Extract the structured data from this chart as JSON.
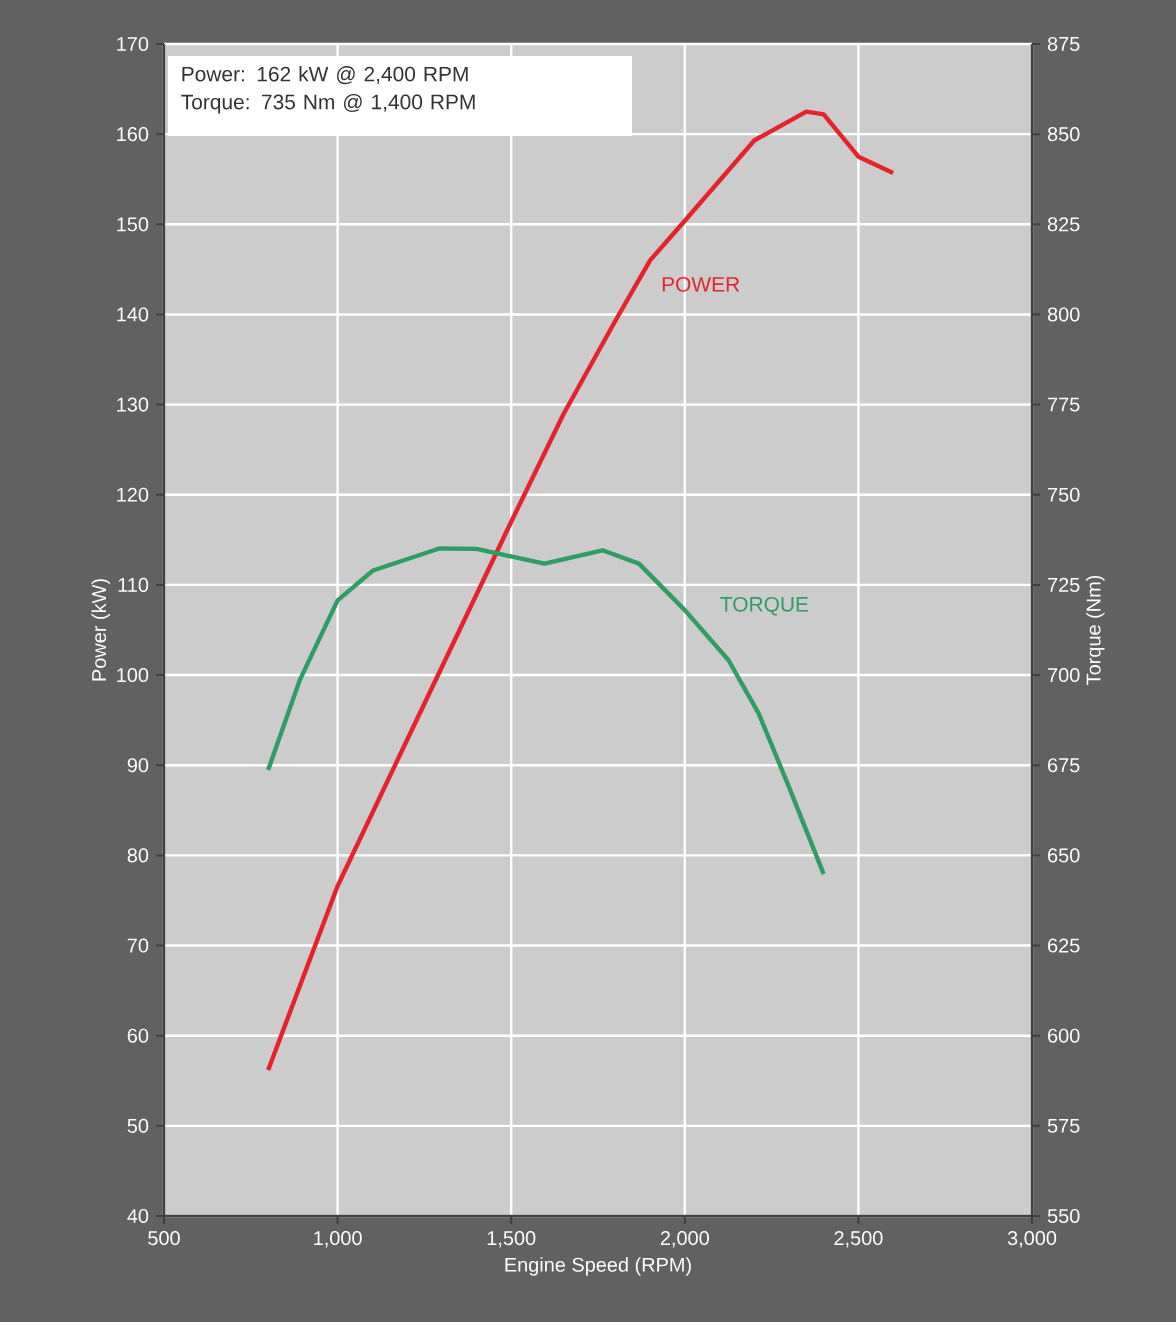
{
  "chart_data": {
    "type": "line",
    "xlabel": "Engine Speed (RPM)",
    "ylabel": "Power (kW)",
    "y2label": "Torque (Nm)",
    "annotations": [
      "Power: 162 kW @ 2,400 RPM",
      "Torque: 735 Nm @ 1,400 RPM"
    ],
    "xlim": [
      500,
      3000
    ],
    "xticks": [
      {
        "value": 500,
        "label": "500"
      },
      {
        "value": 1000,
        "label": "1,000"
      },
      {
        "value": 1500,
        "label": "1,500"
      },
      {
        "value": 2000,
        "label": "2,000"
      },
      {
        "value": 2500,
        "label": "2,500"
      },
      {
        "value": 3000,
        "label": "3,000"
      }
    ],
    "ylim": [
      40,
      170
    ],
    "yticks": [
      40,
      50,
      60,
      70,
      80,
      90,
      100,
      110,
      120,
      130,
      140,
      150,
      160,
      170
    ],
    "y2lim": [
      550,
      875
    ],
    "y2ticks": [
      550,
      575,
      600,
      625,
      650,
      675,
      700,
      725,
      750,
      775,
      800,
      825,
      850,
      875
    ],
    "grid": true,
    "line_style": "solid",
    "series": [
      {
        "name": "POWER",
        "color": "#e3242b",
        "axis": "y",
        "x": [
          800,
          1000,
          1200,
          1500,
          1650,
          1800,
          1900,
          2000,
          2200,
          2350,
          2400,
          2500,
          2600
        ],
        "values": [
          56.2,
          76.6,
          92.8,
          117,
          128.9,
          139.3,
          146,
          150.4,
          159.3,
          162.5,
          162.2,
          157.5,
          155.7
        ]
      },
      {
        "name": "TORQUE",
        "color": "#2e9e64",
        "axis": "y2",
        "x": [
          800,
          891,
          1000,
          1102,
          1293,
          1400,
          1446,
          1596,
          1763,
          1868,
          2000,
          2126,
          2213,
          2299,
          2400
        ],
        "values": [
          673.7,
          698.6,
          720.7,
          729,
          735.1,
          735,
          734,
          730.9,
          734.6,
          730.9,
          718,
          704.1,
          689.3,
          669.2,
          644.8
        ]
      }
    ]
  }
}
